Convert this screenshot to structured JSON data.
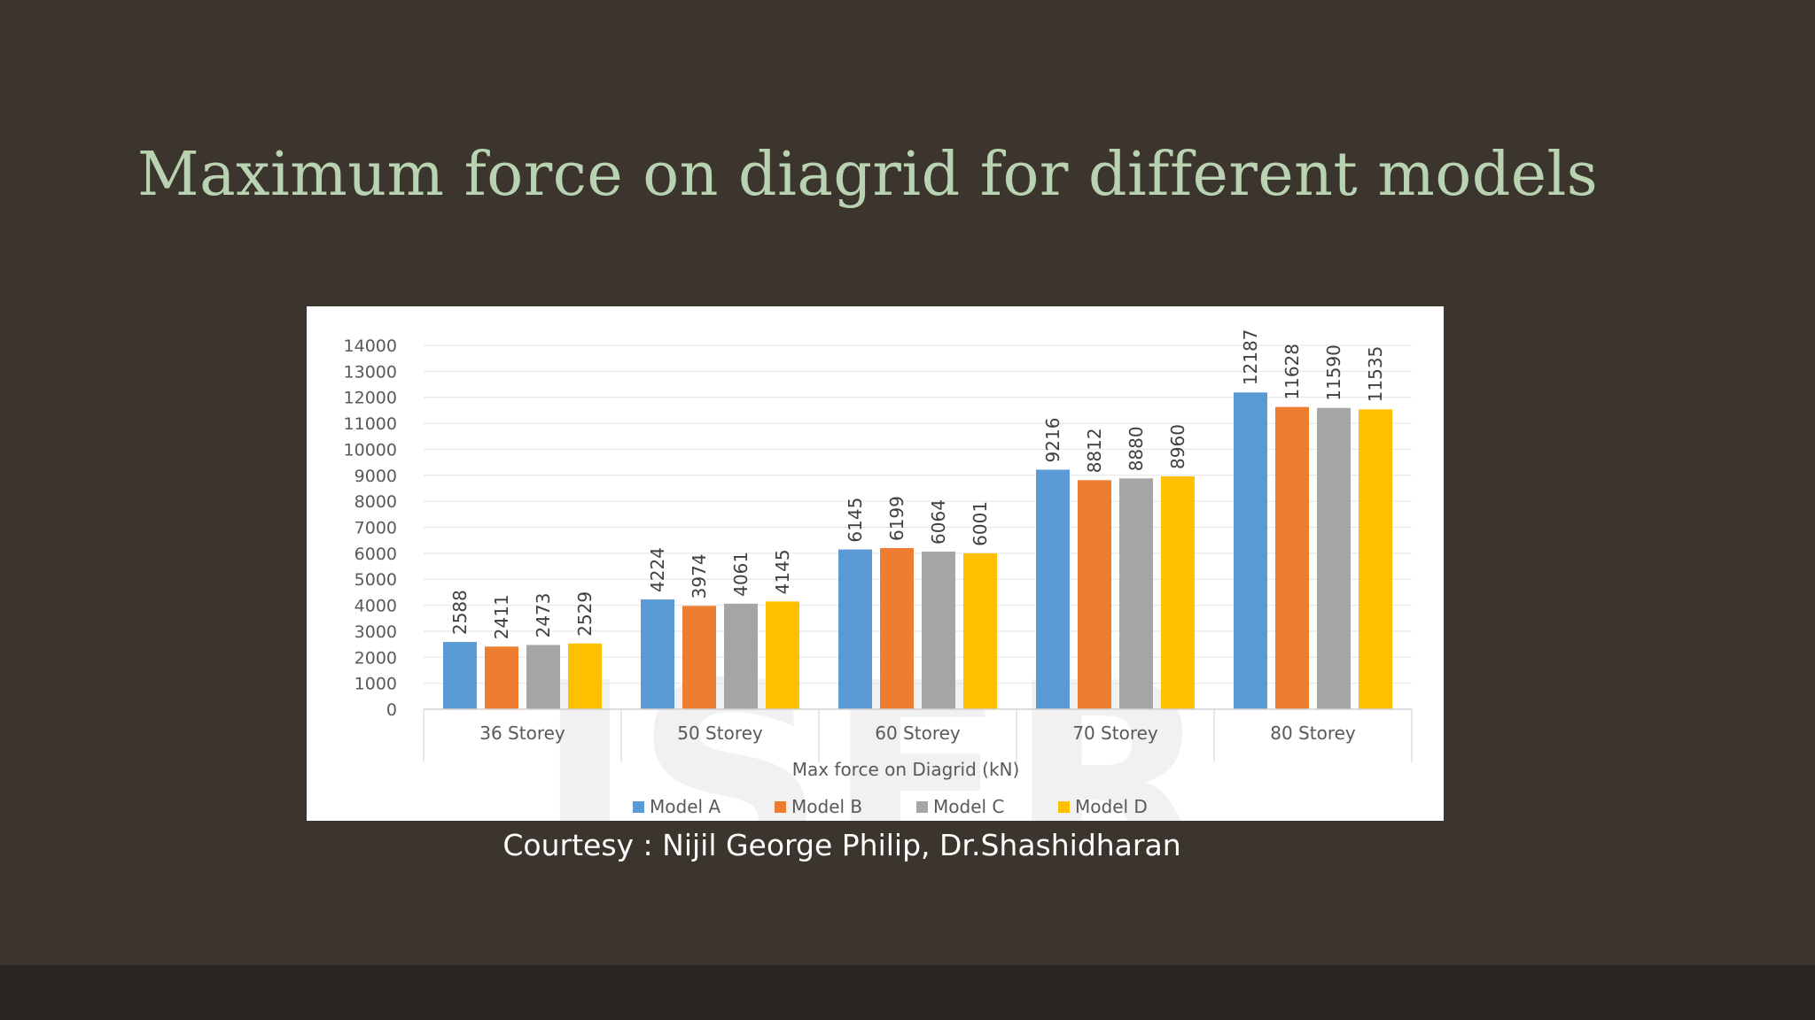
{
  "slide": {
    "title": "Maximum force on diagrid for different models",
    "courtesy": "Courtesy : Nijil George Philip, Dr.Shashidharan",
    "watermark": "ISER"
  },
  "chart_data": {
    "type": "bar",
    "title": "",
    "xlabel": "Max force on Diagrid (kN)",
    "ylabel": "",
    "categories": [
      "36 Storey",
      "50 Storey",
      "60 Storey",
      "70 Storey",
      "80 Storey"
    ],
    "series": [
      {
        "name": "Model A",
        "color": "#5b9bd5",
        "values": [
          2588,
          4224,
          6145,
          9216,
          12187
        ]
      },
      {
        "name": "Model B",
        "color": "#ed7d31",
        "values": [
          2411,
          3974,
          6199,
          8812,
          11628
        ]
      },
      {
        "name": "Model C",
        "color": "#a5a5a5",
        "values": [
          2473,
          4061,
          6064,
          8880,
          11590
        ]
      },
      {
        "name": "Model D",
        "color": "#ffc000",
        "values": [
          2529,
          4145,
          6001,
          8960,
          11535
        ]
      }
    ],
    "y_ticks": [
      "0",
      "1000",
      "2000",
      "3000",
      "4000",
      "5000",
      "6000",
      "7000",
      "8000",
      "9000",
      "10000",
      "11000",
      "12000",
      "13000",
      "14000"
    ],
    "ylim": [
      0,
      14000
    ],
    "grid": true,
    "legend": "bottom",
    "data_labels": "vertical, above bars"
  }
}
